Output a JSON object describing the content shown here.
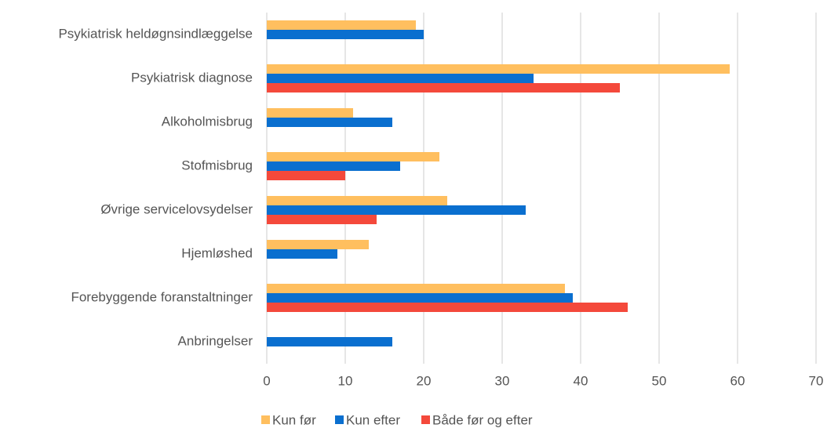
{
  "chart_data": {
    "type": "bar",
    "orientation": "horizontal",
    "categories": [
      "Psykiatrisk heldøgnsindlæggelse",
      "Psykiatrisk diagnose",
      "Alkoholmisbrug",
      "Stofmisbrug",
      "Øvrige servicelovsydelser",
      "Hjemløshed",
      "Forebyggende foranstaltninger",
      "Anbringelser"
    ],
    "series": [
      {
        "name": "Kun før",
        "color": "#ffbf5f",
        "values": [
          19,
          59,
          11,
          22,
          23,
          13,
          38,
          null
        ]
      },
      {
        "name": "Kun efter",
        "color": "#0a6fcf",
        "values": [
          20,
          34,
          16,
          17,
          33,
          9,
          39,
          16
        ]
      },
      {
        "name": "Både før og efter",
        "color": "#f4493b",
        "values": [
          null,
          45,
          null,
          10,
          14,
          null,
          46,
          null
        ]
      }
    ],
    "xlim": [
      0,
      70
    ],
    "xticks": [
      0,
      10,
      20,
      30,
      40,
      50,
      60,
      70
    ],
    "grid": true,
    "legend": "bottom"
  }
}
